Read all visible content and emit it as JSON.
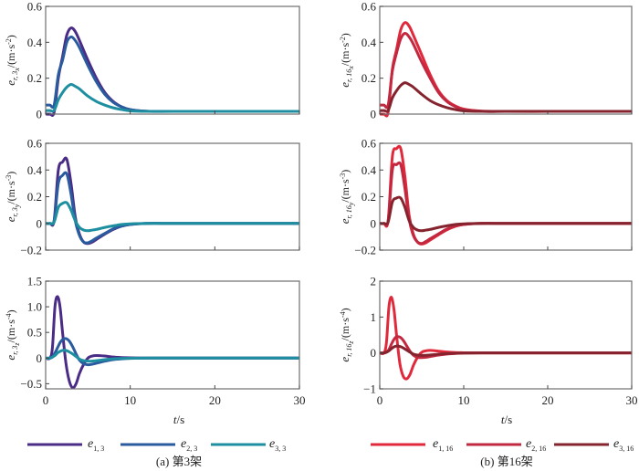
{
  "chart_data": [
    {
      "type": "line",
      "panel": "a-x",
      "ylabel": "e_{r,3_x}/(m·s^-2)",
      "ylabel_main": "e",
      "ylabel_sub": "r, 3",
      "ylabel_subsub": "x",
      "ylabel_unit": "/(m·s",
      "ylabel_exp": "-2",
      "ylim": [
        0,
        0.6
      ],
      "yticks": [
        0,
        0.2,
        0.4,
        0.6
      ],
      "ytick_labels": [
        "0",
        "0.2",
        "0.4",
        "0.6"
      ],
      "xlim": [
        0,
        30
      ],
      "x": [
        0,
        0.5,
        1,
        1.5,
        2,
        2.5,
        3,
        3.5,
        4,
        5,
        6,
        7,
        8,
        9,
        10,
        12,
        15,
        20,
        25,
        30
      ],
      "series": [
        {
          "name": "e_{1,3}",
          "values": [
            0,
            0,
            0.01,
            0.2,
            0.32,
            0.44,
            0.48,
            0.46,
            0.41,
            0.3,
            0.2,
            0.12,
            0.07,
            0.04,
            0.025,
            0.016,
            0.015,
            0.015,
            0.015,
            0.015
          ]
        },
        {
          "name": "e_{2,3}",
          "values": [
            0.05,
            0.05,
            0.05,
            0.22,
            0.3,
            0.4,
            0.43,
            0.41,
            0.37,
            0.27,
            0.18,
            0.11,
            0.065,
            0.04,
            0.025,
            0.016,
            0.015,
            0.015,
            0.015,
            0.015
          ]
        },
        {
          "name": "e_{3,3}",
          "values": [
            0.02,
            0.02,
            0.02,
            0.08,
            0.12,
            0.15,
            0.165,
            0.155,
            0.14,
            0.1,
            0.07,
            0.05,
            0.035,
            0.025,
            0.018,
            0.015,
            0.015,
            0.015,
            0.015,
            0.015
          ]
        }
      ]
    },
    {
      "type": "line",
      "panel": "a-y",
      "ylabel": "e_{r,3_y}/(m·s^-3)",
      "ylabel_main": "e",
      "ylabel_sub": "r, 3",
      "ylabel_subsub": "y",
      "ylabel_unit": "/(m·s",
      "ylabel_exp": "-3",
      "ylim": [
        -0.2,
        0.6
      ],
      "yticks": [
        -0.2,
        0,
        0.2,
        0.4,
        0.6
      ],
      "ytick_labels": [
        "−0.2",
        "0",
        "0.2",
        "0.4",
        "0.6"
      ],
      "xlim": [
        0,
        30
      ],
      "x": [
        0,
        0.5,
        1,
        1.5,
        2,
        2.5,
        3,
        3.5,
        4,
        4.5,
        5,
        5.5,
        6,
        7,
        8,
        9,
        10,
        12,
        15,
        20,
        30
      ],
      "series": [
        {
          "name": "e_{1,3}",
          "values": [
            0,
            0,
            0.02,
            0.4,
            0.46,
            0.48,
            0.3,
            0.05,
            -0.08,
            -0.14,
            -0.15,
            -0.14,
            -0.12,
            -0.08,
            -0.045,
            -0.02,
            -0.008,
            0,
            0,
            0,
            0
          ]
        },
        {
          "name": "e_{2,3}",
          "values": [
            0,
            0,
            0.02,
            0.3,
            0.36,
            0.37,
            0.22,
            0.02,
            -0.09,
            -0.14,
            -0.145,
            -0.13,
            -0.11,
            -0.075,
            -0.04,
            -0.02,
            -0.008,
            0,
            0,
            0,
            0
          ]
        },
        {
          "name": "e_{3,3}",
          "values": [
            0,
            0,
            0.01,
            0.12,
            0.15,
            0.155,
            0.1,
            0.02,
            -0.03,
            -0.05,
            -0.055,
            -0.05,
            -0.045,
            -0.03,
            -0.018,
            -0.008,
            -0.003,
            0,
            0,
            0,
            0
          ]
        }
      ]
    },
    {
      "type": "line",
      "panel": "a-z",
      "ylabel": "e_{r,3_z}/(m·s^-4)",
      "ylabel_main": "e",
      "ylabel_sub": "r, 3",
      "ylabel_subsub": "z",
      "ylabel_unit": "/(m·s",
      "ylabel_exp": "-4",
      "ylim": [
        -0.6,
        1.5
      ],
      "yticks": [
        -0.5,
        0,
        0.5,
        1.0,
        1.5
      ],
      "ytick_labels": [
        "−0.5",
        "0",
        "0.5",
        "1.0",
        "1.5"
      ],
      "xlim": [
        0,
        30
      ],
      "x": [
        0,
        0.5,
        0.8,
        1.1,
        1.4,
        1.7,
        2,
        2.4,
        2.8,
        3.2,
        3.6,
        4,
        4.5,
        5,
        5.5,
        6,
        7,
        8,
        9,
        10,
        12,
        15,
        20,
        30
      ],
      "series": [
        {
          "name": "e_{1,3}",
          "values": [
            0,
            0,
            0.2,
            1.0,
            1.2,
            1.0,
            0.5,
            -0.1,
            -0.45,
            -0.58,
            -0.5,
            -0.3,
            -0.12,
            0,
            0.04,
            0.05,
            0.04,
            0.02,
            0.01,
            0.005,
            0,
            0,
            0,
            0
          ]
        },
        {
          "name": "e_{2,3}",
          "values": [
            0,
            0,
            0.02,
            0.1,
            0.2,
            0.3,
            0.36,
            0.38,
            0.33,
            0.22,
            0.08,
            -0.04,
            -0.11,
            -0.13,
            -0.12,
            -0.1,
            -0.06,
            -0.03,
            -0.015,
            -0.005,
            0,
            0,
            0,
            0
          ]
        },
        {
          "name": "e_{3,3}",
          "values": [
            0,
            0,
            0.02,
            0.05,
            0.1,
            0.13,
            0.15,
            0.15,
            0.12,
            0.08,
            0.03,
            -0.02,
            -0.05,
            -0.06,
            -0.06,
            -0.05,
            -0.03,
            -0.015,
            -0.008,
            -0.003,
            0,
            0,
            0,
            0
          ]
        }
      ]
    },
    {
      "type": "line",
      "panel": "b-x",
      "ylabel": "e_{r,16_x}/(m·s^-2)",
      "ylabel_main": "e",
      "ylabel_sub": "r, 16",
      "ylabel_subsub": "x",
      "ylabel_unit": "/(m·s",
      "ylabel_exp": "-2",
      "ylim": [
        0,
        0.6
      ],
      "yticks": [
        0,
        0.2,
        0.4,
        0.6
      ],
      "ytick_labels": [
        "0",
        "0.2",
        "0.4",
        "0.6"
      ],
      "xlim": [
        0,
        30
      ],
      "x": [
        0,
        0.5,
        1,
        1.5,
        2,
        2.5,
        3,
        3.5,
        4,
        5,
        6,
        7,
        8,
        9,
        10,
        12,
        15,
        20,
        25,
        30
      ],
      "series": [
        {
          "name": "e_{1,16}",
          "values": [
            0,
            0,
            0.01,
            0.25,
            0.36,
            0.47,
            0.51,
            0.49,
            0.44,
            0.33,
            0.22,
            0.13,
            0.075,
            0.045,
            0.028,
            0.017,
            0.015,
            0.015,
            0.015,
            0.015
          ]
        },
        {
          "name": "e_{2,16}",
          "values": [
            0.05,
            0.05,
            0.05,
            0.24,
            0.34,
            0.42,
            0.45,
            0.43,
            0.39,
            0.29,
            0.2,
            0.12,
            0.07,
            0.042,
            0.026,
            0.016,
            0.015,
            0.015,
            0.015,
            0.015
          ]
        },
        {
          "name": "e_{3,16}",
          "values": [
            0.02,
            0.02,
            0.02,
            0.09,
            0.13,
            0.16,
            0.175,
            0.165,
            0.15,
            0.11,
            0.075,
            0.052,
            0.036,
            0.025,
            0.018,
            0.015,
            0.015,
            0.015,
            0.015,
            0.015
          ]
        }
      ]
    },
    {
      "type": "line",
      "panel": "b-y",
      "ylabel": "e_{r,16_y}/(m·s^-3)",
      "ylabel_main": "e",
      "ylabel_sub": "r, 16",
      "ylabel_subsub": "y",
      "ylabel_unit": "/(m·s",
      "ylabel_exp": "-3",
      "ylim": [
        -0.2,
        0.6
      ],
      "yticks": [
        -0.2,
        0,
        0.2,
        0.4,
        0.6
      ],
      "ytick_labels": [
        "−0.2",
        "0",
        "0.2",
        "0.4",
        "0.6"
      ],
      "xlim": [
        0,
        30
      ],
      "x": [
        0,
        0.5,
        1,
        1.5,
        2,
        2.5,
        3,
        3.5,
        4,
        4.5,
        5,
        5.5,
        6,
        7,
        8,
        9,
        10,
        12,
        15,
        20,
        30
      ],
      "series": [
        {
          "name": "e_{1,16}",
          "values": [
            0,
            0,
            0.02,
            0.5,
            0.56,
            0.56,
            0.35,
            0.06,
            -0.08,
            -0.14,
            -0.155,
            -0.145,
            -0.125,
            -0.085,
            -0.048,
            -0.022,
            -0.008,
            0,
            0,
            0,
            0
          ]
        },
        {
          "name": "e_{2,16}",
          "values": [
            0,
            0,
            0.02,
            0.4,
            0.44,
            0.44,
            0.26,
            0.03,
            -0.09,
            -0.14,
            -0.15,
            -0.135,
            -0.115,
            -0.078,
            -0.042,
            -0.02,
            -0.008,
            0,
            0,
            0,
            0
          ]
        },
        {
          "name": "e_{3,16}",
          "values": [
            0,
            0,
            0.01,
            0.16,
            0.19,
            0.19,
            0.12,
            0.02,
            -0.03,
            -0.05,
            -0.055,
            -0.05,
            -0.045,
            -0.03,
            -0.018,
            -0.008,
            -0.003,
            0,
            0,
            0,
            0
          ]
        }
      ]
    },
    {
      "type": "line",
      "panel": "b-z",
      "ylabel": "e_{r,16_z}/(m·s^-4)",
      "ylabel_main": "e",
      "ylabel_sub": "r, 16",
      "ylabel_subsub": "z",
      "ylabel_unit": "/(m·s",
      "ylabel_exp": "-4",
      "ylim": [
        -1,
        2
      ],
      "yticks": [
        -1,
        0,
        1,
        2
      ],
      "ytick_labels": [
        "−1",
        "0",
        "1",
        "2"
      ],
      "xlim": [
        0,
        30
      ],
      "x": [
        0,
        0.5,
        0.8,
        1.1,
        1.4,
        1.7,
        2,
        2.4,
        2.8,
        3.2,
        3.6,
        4,
        4.5,
        5,
        5.5,
        6,
        7,
        8,
        9,
        10,
        12,
        15,
        20,
        30
      ],
      "series": [
        {
          "name": "e_{1,16}",
          "values": [
            0,
            0,
            0.3,
            1.3,
            1.55,
            1.2,
            0.5,
            -0.3,
            -0.65,
            -0.72,
            -0.6,
            -0.35,
            -0.12,
            0.02,
            0.06,
            0.07,
            0.05,
            0.025,
            0.01,
            0.005,
            0,
            0,
            0,
            0
          ]
        },
        {
          "name": "e_{2,16}",
          "values": [
            0,
            0,
            0.02,
            0.1,
            0.25,
            0.38,
            0.45,
            0.44,
            0.35,
            0.2,
            0.05,
            -0.06,
            -0.12,
            -0.13,
            -0.12,
            -0.1,
            -0.06,
            -0.03,
            -0.015,
            -0.005,
            0,
            0,
            0,
            0
          ]
        },
        {
          "name": "e_{3,16}",
          "values": [
            0,
            0,
            0.02,
            0.06,
            0.12,
            0.17,
            0.19,
            0.18,
            0.14,
            0.08,
            0.02,
            -0.03,
            -0.06,
            -0.07,
            -0.065,
            -0.055,
            -0.035,
            -0.018,
            -0.008,
            -0.003,
            0,
            0,
            0,
            0
          ]
        }
      ]
    }
  ],
  "xaxis": {
    "ticks": [
      0,
      10,
      20,
      30
    ],
    "tick_labels": [
      "0",
      "10",
      "20",
      "30"
    ],
    "label_italic": "t",
    "label_rest": "/s"
  },
  "legends": {
    "a": [
      {
        "main": "e",
        "sub": "1, 3",
        "color": "#4a2b85"
      },
      {
        "main": "e",
        "sub": "2, 3",
        "color": "#2a5b9e"
      },
      {
        "main": "e",
        "sub": "3, 3",
        "color": "#1e8fa0"
      }
    ],
    "b": [
      {
        "main": "e",
        "sub": "1, 16",
        "color": "#e02a3c"
      },
      {
        "main": "e",
        "sub": "2, 16",
        "color": "#c2283f"
      },
      {
        "main": "e",
        "sub": "3, 16",
        "color": "#85232e"
      }
    ]
  },
  "captions": {
    "a": "(a) 第3架",
    "b": "(b) 第16架"
  }
}
